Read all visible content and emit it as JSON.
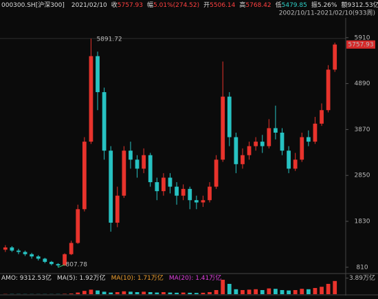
{
  "header": {
    "symbol": "000300.SH[沪深300]",
    "date": "2021/02/10",
    "fields": [
      {
        "label": "收",
        "value": "5757.93",
        "color": "#ff4040"
      },
      {
        "label": "幅",
        "value": "5.01%(274.52)",
        "color": "#ff4040"
      },
      {
        "label": "开",
        "value": "5506.14",
        "color": "#ff4040"
      },
      {
        "label": "高",
        "value": "5768.42",
        "color": "#ff4040"
      },
      {
        "label": "低",
        "value": "5479.85",
        "color": "#2ed0c8"
      },
      {
        "label": "振",
        "value": "5.26%",
        "color": "#dddddd"
      },
      {
        "label": "额",
        "value": "9312.53亿",
        "color": "#dddddd"
      }
    ],
    "range": "2002/10/11-2021/02/10(933周)"
  },
  "chart_data": {
    "type": "candlestick",
    "up_color": "#e8332c",
    "down_color": "#27c2c2",
    "open": [
      1200,
      1250,
      1180,
      1150,
      1100,
      1050,
      1000,
      930,
      880,
      850,
      1100,
      1350,
      2100,
      3600,
      5500,
      4700,
      3400,
      1800,
      2400,
      3400,
      3200,
      3000,
      3300,
      2700,
      2500,
      2800,
      2600,
      2400,
      2550,
      2300,
      2250,
      2300,
      2600,
      3200,
      4600,
      3700,
      3100,
      3300,
      3500,
      3600,
      3500,
      3900,
      3800,
      3400,
      3000,
      3200,
      3700,
      3600,
      4000,
      4300,
      5200
    ],
    "high": [
      1300,
      1280,
      1220,
      1180,
      1130,
      1080,
      1020,
      950,
      900,
      1120,
      1400,
      2200,
      3700,
      5891.72,
      5600,
      4800,
      3500,
      2600,
      3500,
      3600,
      3300,
      3450,
      3350,
      2800,
      2900,
      2900,
      2700,
      2650,
      2600,
      2400,
      2400,
      2700,
      3300,
      5380,
      4700,
      3800,
      3450,
      3600,
      3700,
      3750,
      4100,
      4400,
      3900,
      3500,
      3350,
      3800,
      3850,
      4150,
      4450,
      5300,
      5800
    ],
    "low": [
      1150,
      1150,
      1100,
      1060,
      1000,
      960,
      900,
      850,
      807.78,
      840,
      1080,
      1330,
      2050,
      3550,
      4300,
      3200,
      1600,
      1700,
      2350,
      3000,
      2800,
      2900,
      2600,
      2300,
      2400,
      2450,
      2200,
      2300,
      2100,
      2100,
      2150,
      2250,
      2550,
      3150,
      3500,
      2900,
      3000,
      3200,
      3400,
      3350,
      3450,
      3650,
      3300,
      2900,
      2950,
      3150,
      3500,
      3550,
      3950,
      4250,
      5150
    ],
    "close": [
      1250,
      1180,
      1150,
      1100,
      1050,
      1000,
      930,
      880,
      850,
      1100,
      1350,
      2100,
      3600,
      5500,
      4700,
      3400,
      1800,
      2400,
      3400,
      3200,
      3000,
      3300,
      2700,
      2500,
      2800,
      2600,
      2400,
      2550,
      2300,
      2250,
      2300,
      2600,
      3200,
      4600,
      3700,
      3100,
      3300,
      3500,
      3600,
      3500,
      3900,
      3800,
      3400,
      3000,
      3200,
      3700,
      3600,
      4000,
      4300,
      5200,
      5757.93
    ],
    "ylim": [
      700,
      6350
    ],
    "yticks": [
      810,
      1830,
      2850,
      3870,
      4890,
      5910
    ],
    "volume": {
      "legend": [
        {
          "text": "AMO: 9312.53亿",
          "color": "#dddddd"
        },
        {
          "text": "MA(5): 1.92万亿",
          "color": "#dddddd"
        },
        {
          "text": "MA(10): 1.71万亿",
          "color": "#f0a030"
        },
        {
          "text": "MA(20): 1.41万亿",
          "color": "#e040e0"
        }
      ],
      "values": [
        0.05,
        0.04,
        0.04,
        0.03,
        0.03,
        0.03,
        0.03,
        0.03,
        0.04,
        0.08,
        0.15,
        0.4,
        0.8,
        1.1,
        0.9,
        0.6,
        0.4,
        0.5,
        0.7,
        0.6,
        0.5,
        0.6,
        0.5,
        0.4,
        0.5,
        0.4,
        0.35,
        0.4,
        0.35,
        0.3,
        0.35,
        0.5,
        1.0,
        3.5,
        2.5,
        1.2,
        1.0,
        1.1,
        1.2,
        1.0,
        1.4,
        1.3,
        1.0,
        0.9,
        1.0,
        1.3,
        1.2,
        1.5,
        1.8,
        2.5,
        3.2
      ],
      "ylim": [
        0,
        4
      ],
      "yticks": [
        {
          "value": 3.89,
          "label": "3.89万亿"
        }
      ]
    }
  }
}
